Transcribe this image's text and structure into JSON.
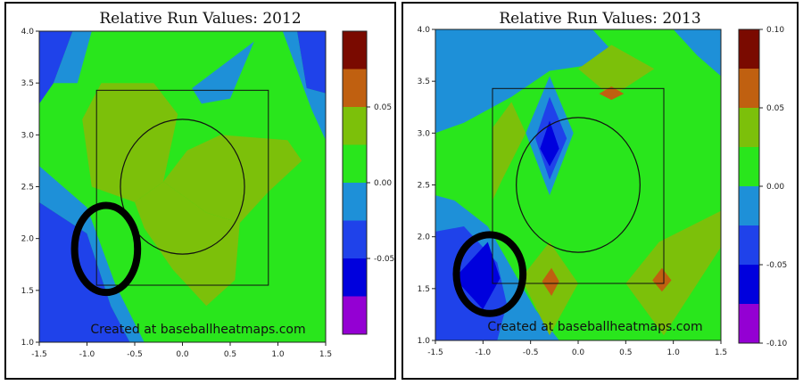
{
  "chart_data": [
    {
      "type": "heatmap",
      "title": "Relative Run Values: 2012",
      "xlabel": "",
      "ylabel": "",
      "xlim": [
        -1.5,
        1.5
      ],
      "ylim": [
        1.0,
        4.0
      ],
      "x_ticks": [
        "-1.5",
        "-1.0",
        "-0.5",
        "0.0",
        "0.5",
        "1.0",
        "1.5"
      ],
      "y_ticks": [
        "1.0",
        "1.5",
        "2.0",
        "2.5",
        "3.0",
        "3.5",
        "4.0"
      ],
      "x_tick_values": [
        -1.5,
        -1.0,
        -0.5,
        0.0,
        0.5,
        1.0,
        1.5
      ],
      "y_tick_values": [
        1.0,
        1.5,
        2.0,
        2.5,
        3.0,
        3.5,
        4.0
      ],
      "color_scale": {
        "levels": [
          -0.1,
          -0.075,
          -0.05,
          -0.025,
          0.0,
          0.025,
          0.05,
          0.075,
          0.1
        ],
        "colors": [
          "#9400d3",
          "#0000dd",
          "#1f42ea",
          "#1e90d8",
          "#29e61c",
          "#7cc00a",
          "#c06010",
          "#7a0a00"
        ],
        "range": [
          -0.1,
          0.1
        ],
        "tick_labels": [
          "0.05",
          "0.00",
          "-0.05"
        ],
        "tick_values": [
          0.05,
          0.0,
          -0.05
        ]
      },
      "strike_zone": {
        "x": [
          -0.9,
          0.9
        ],
        "y": [
          1.55,
          3.43
        ]
      },
      "circle": {
        "cx": 0.0,
        "cy": 2.5,
        "r": 0.65
      },
      "highlight_circle": {
        "cx": -0.8,
        "cy": 1.9,
        "rx": 0.33,
        "ry": 0.42
      },
      "regions": [
        {
          "value": -0.05,
          "color": "#1f42ea",
          "points": [
            [
              -1.5,
              4.0
            ],
            [
              -1.15,
              4.0
            ],
            [
              -1.35,
              3.5
            ],
            [
              -1.5,
              3.3
            ]
          ]
        },
        {
          "value": -0.05,
          "color": "#1f42ea",
          "points": [
            [
              1.2,
              4.0
            ],
            [
              1.5,
              4.0
            ],
            [
              1.5,
              3.4
            ],
            [
              1.3,
              3.45
            ]
          ]
        },
        {
          "value": -0.05,
          "color": "#1f42ea",
          "points": [
            [
              -1.5,
              1.0
            ],
            [
              -1.5,
              2.35
            ],
            [
              -1.0,
              2.05
            ],
            [
              -0.75,
              1.35
            ],
            [
              -0.55,
              1.0
            ]
          ]
        },
        {
          "value": -0.025,
          "color": "#1e90d8",
          "points": [
            [
              -1.15,
              4.0
            ],
            [
              -0.95,
              4.0
            ],
            [
              -1.1,
              3.5
            ],
            [
              -1.35,
              3.5
            ]
          ]
        },
        {
          "value": -0.025,
          "color": "#1e90d8",
          "points": [
            [
              1.05,
              4.0
            ],
            [
              1.2,
              4.0
            ],
            [
              1.3,
              3.45
            ],
            [
              1.5,
              3.4
            ],
            [
              1.5,
              2.95
            ],
            [
              1.35,
              3.25
            ]
          ]
        },
        {
          "value": -0.025,
          "color": "#1e90d8",
          "points": [
            [
              0.1,
              3.45
            ],
            [
              0.75,
              3.9
            ],
            [
              0.5,
              3.35
            ],
            [
              0.2,
              3.3
            ]
          ]
        },
        {
          "value": -0.025,
          "color": "#1e90d8",
          "points": [
            [
              -1.5,
              2.35
            ],
            [
              -1.5,
              2.7
            ],
            [
              -1.0,
              2.3
            ],
            [
              -0.7,
              1.55
            ],
            [
              -0.4,
              1.0
            ],
            [
              -0.55,
              1.0
            ],
            [
              -0.75,
              1.35
            ],
            [
              -1.0,
              2.05
            ]
          ]
        },
        {
          "value": 0.025,
          "color": "#7cc00a",
          "points": [
            [
              -0.85,
              3.5
            ],
            [
              -0.3,
              3.5
            ],
            [
              -0.05,
              3.2
            ],
            [
              -0.2,
              2.55
            ],
            [
              -0.5,
              2.35
            ],
            [
              -0.95,
              2.5
            ],
            [
              -1.05,
              3.15
            ]
          ]
        },
        {
          "value": 0.025,
          "color": "#7cc00a",
          "points": [
            [
              -0.2,
              2.55
            ],
            [
              0.25,
              2.25
            ],
            [
              0.6,
              2.15
            ],
            [
              0.9,
              2.45
            ],
            [
              1.25,
              2.75
            ],
            [
              1.1,
              2.95
            ],
            [
              0.4,
              3.0
            ],
            [
              0.05,
              2.85
            ]
          ]
        },
        {
          "value": 0.025,
          "color": "#7cc00a",
          "points": [
            [
              -0.2,
              2.55
            ],
            [
              -0.5,
              2.35
            ],
            [
              -0.4,
              2.1
            ],
            [
              -0.1,
              1.7
            ],
            [
              0.05,
              1.55
            ],
            [
              0.25,
              1.35
            ],
            [
              0.55,
              1.6
            ],
            [
              0.6,
              2.15
            ],
            [
              0.25,
              2.25
            ]
          ]
        }
      ]
    },
    {
      "type": "heatmap",
      "title": "Relative Run Values: 2013",
      "xlabel": "",
      "ylabel": "",
      "xlim": [
        -1.5,
        1.5
      ],
      "ylim": [
        1.0,
        4.0
      ],
      "x_ticks": [
        "-1.5",
        "-1.0",
        "-0.5",
        "0.0",
        "0.5",
        "1.0",
        "1.5"
      ],
      "y_ticks": [
        "1.0",
        "1.5",
        "2.0",
        "2.5",
        "3.0",
        "3.5",
        "4.0"
      ],
      "x_tick_values": [
        -1.5,
        -1.0,
        -0.5,
        0.0,
        0.5,
        1.0,
        1.5
      ],
      "y_tick_values": [
        1.0,
        1.5,
        2.0,
        2.5,
        3.0,
        3.5,
        4.0
      ],
      "color_scale": {
        "levels": [
          -0.1,
          -0.075,
          -0.05,
          -0.025,
          0.0,
          0.025,
          0.05,
          0.075,
          0.1
        ],
        "colors": [
          "#9400d3",
          "#0000dd",
          "#1f42ea",
          "#1e90d8",
          "#29e61c",
          "#7cc00a",
          "#c06010",
          "#7a0a00"
        ],
        "range": [
          -0.1,
          0.1
        ],
        "tick_labels": [
          "0.10",
          "0.05",
          "0.00",
          "-0.05",
          "-0.10"
        ],
        "tick_values": [
          0.1,
          0.05,
          0.0,
          -0.05,
          -0.1
        ]
      },
      "strike_zone": {
        "x": [
          -0.9,
          0.9
        ],
        "y": [
          1.55,
          3.43
        ]
      },
      "circle": {
        "cx": 0.0,
        "cy": 2.5,
        "r": 0.65
      },
      "highlight_circle": {
        "cx": -0.93,
        "cy": 1.64,
        "rx": 0.35,
        "ry": 0.38
      },
      "regions": [
        {
          "value": -0.025,
          "color": "#1e90d8",
          "points": [
            [
              -1.5,
              4.0
            ],
            [
              0.15,
              4.0
            ],
            [
              0.45,
              3.7
            ],
            [
              -0.3,
              3.6
            ],
            [
              -0.7,
              3.35
            ],
            [
              -1.2,
              3.1
            ],
            [
              -1.5,
              3.0
            ]
          ]
        },
        {
          "value": -0.025,
          "color": "#1e90d8",
          "points": [
            [
              1.0,
              4.0
            ],
            [
              1.5,
              4.0
            ],
            [
              1.5,
              3.55
            ],
            [
              1.25,
              3.75
            ]
          ]
        },
        {
          "value": -0.025,
          "color": "#1e90d8",
          "points": [
            [
              -1.5,
              1.0
            ],
            [
              -1.5,
              2.4
            ],
            [
              -1.3,
              2.35
            ],
            [
              -0.95,
              2.1
            ],
            [
              -0.7,
              1.7
            ],
            [
              -0.45,
              1.3
            ],
            [
              -0.2,
              1.0
            ]
          ]
        },
        {
          "value": -0.025,
          "color": "#1e90d8",
          "points": [
            [
              -0.3,
              3.55
            ],
            [
              -0.05,
              3.0
            ],
            [
              -0.3,
              2.4
            ],
            [
              -0.55,
              3.0
            ]
          ]
        },
        {
          "value": -0.05,
          "color": "#1f42ea",
          "points": [
            [
              -0.3,
              3.35
            ],
            [
              -0.12,
              2.95
            ],
            [
              -0.3,
              2.55
            ],
            [
              -0.45,
              2.95
            ]
          ]
        },
        {
          "value": -0.05,
          "color": "#1f42ea",
          "points": [
            [
              -1.5,
              1.0
            ],
            [
              -1.5,
              2.05
            ],
            [
              -1.2,
              2.1
            ],
            [
              -0.85,
              1.75
            ],
            [
              -0.75,
              1.35
            ],
            [
              -0.85,
              1.0
            ]
          ]
        },
        {
          "value": -0.075,
          "color": "#0000dd",
          "points": [
            [
              -0.3,
              3.12
            ],
            [
              -0.2,
              2.85
            ],
            [
              -0.3,
              2.68
            ],
            [
              -0.4,
              2.85
            ]
          ]
        },
        {
          "value": -0.075,
          "color": "#0000dd",
          "points": [
            [
              -1.3,
              1.6
            ],
            [
              -0.95,
              1.95
            ],
            [
              -0.82,
              1.6
            ],
            [
              -1.0,
              1.3
            ]
          ]
        },
        {
          "value": 0.025,
          "color": "#7cc00a",
          "points": [
            [
              -0.9,
              2.35
            ],
            [
              -0.9,
              3.05
            ],
            [
              -0.7,
              3.3
            ],
            [
              -0.55,
              3.0
            ],
            [
              -0.8,
              2.55
            ]
          ]
        },
        {
          "value": 0.025,
          "color": "#7cc00a",
          "points": [
            [
              0.0,
              3.62
            ],
            [
              0.35,
              3.85
            ],
            [
              0.8,
              3.62
            ],
            [
              0.35,
              3.35
            ]
          ]
        },
        {
          "value": 0.025,
          "color": "#7cc00a",
          "points": [
            [
              -0.6,
              1.6
            ],
            [
              -0.3,
              1.95
            ],
            [
              0.0,
              1.55
            ],
            [
              -0.3,
              1.05
            ]
          ]
        },
        {
          "value": 0.025,
          "color": "#7cc00a",
          "points": [
            [
              0.5,
              1.55
            ],
            [
              0.85,
              1.95
            ],
            [
              1.5,
              2.25
            ],
            [
              1.5,
              1.9
            ],
            [
              0.9,
              1.05
            ]
          ]
        },
        {
          "value": 0.05,
          "color": "#c06010",
          "points": [
            [
              0.35,
              3.45
            ],
            [
              0.22,
              3.38
            ],
            [
              0.35,
              3.32
            ],
            [
              0.48,
              3.38
            ]
          ]
        },
        {
          "value": 0.05,
          "color": "#c06010",
          "points": [
            [
              -0.28,
              1.7
            ],
            [
              -0.2,
              1.57
            ],
            [
              -0.28,
              1.43
            ],
            [
              -0.38,
              1.57
            ]
          ]
        },
        {
          "value": 0.05,
          "color": "#c06010",
          "points": [
            [
              0.88,
              1.7
            ],
            [
              0.98,
              1.58
            ],
            [
              0.88,
              1.47
            ],
            [
              0.78,
              1.58
            ]
          ]
        }
      ]
    }
  ],
  "watermark": "Created at baseballheatmaps.com"
}
